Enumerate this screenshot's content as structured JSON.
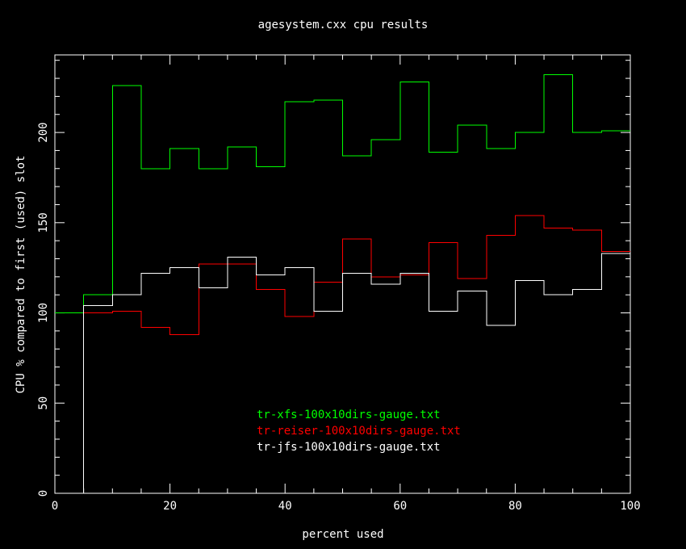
{
  "chart_data": {
    "type": "line",
    "title": "agesystem.cxx cpu results",
    "xlabel": "percent used",
    "ylabel": "CPU % compared to first (used) slot",
    "xlim": [
      0,
      100
    ],
    "ylim": [
      0,
      243
    ],
    "x_ticks": [
      0,
      20,
      40,
      60,
      80,
      100
    ],
    "y_ticks": [
      0,
      50,
      100,
      150,
      200
    ],
    "grid": false,
    "legend_placement": "bottom-center",
    "line_shape": "step",
    "background": "#000000",
    "axis_color": "#ffffff",
    "bin_edges": [
      0,
      5,
      10,
      15,
      20,
      25,
      30,
      35,
      40,
      45,
      50,
      55,
      60,
      65,
      70,
      75,
      80,
      85,
      90,
      95,
      100
    ],
    "series": [
      {
        "name": "tr-xfs-100x10dirs-gauge.txt",
        "color": "#00ff00",
        "values": [
          100,
          110,
          226,
          180,
          191,
          180,
          192,
          181,
          217,
          218,
          187,
          196,
          228,
          189,
          204,
          191,
          200,
          232,
          200,
          201
        ]
      },
      {
        "name": "tr-reiser-100x10dirs-gauge.txt",
        "color": "#ff0000",
        "values": [
          0,
          100,
          101,
          92,
          88,
          127,
          127,
          113,
          98,
          117,
          141,
          120,
          121,
          139,
          119,
          143,
          154,
          147,
          146,
          134
        ]
      },
      {
        "name": "tr-jfs-100x10dirs-gauge.txt",
        "color": "#ffffff",
        "values": [
          0,
          104,
          110,
          122,
          125,
          114,
          131,
          121,
          125,
          101,
          122,
          116,
          122,
          101,
          112,
          93,
          118,
          110,
          113,
          133
        ]
      }
    ]
  }
}
